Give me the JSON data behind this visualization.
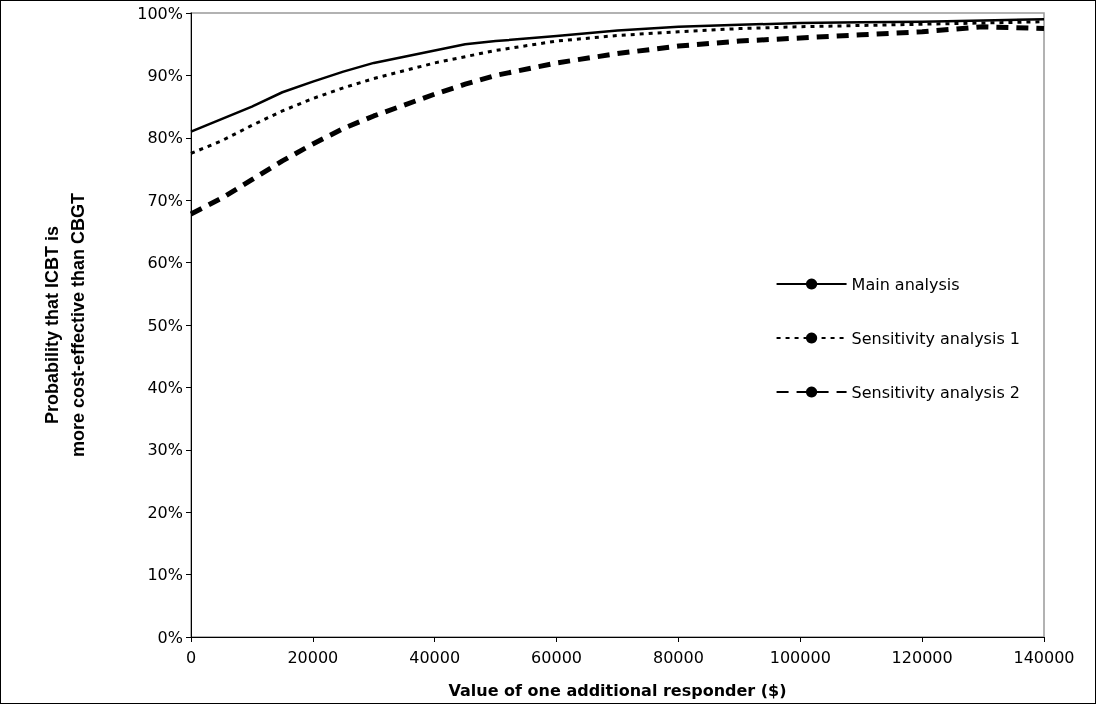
{
  "chart_data": {
    "type": "line",
    "xlabel": "Value of one additional responder ($)",
    "ylabel": "Probability that ICBT is\nmore cost-effective than CBGT",
    "x": [
      0,
      5000,
      10000,
      15000,
      20000,
      25000,
      30000,
      40000,
      45000,
      50000,
      60000,
      70000,
      80000,
      90000,
      100000,
      110000,
      120000,
      130000,
      140000
    ],
    "series": [
      {
        "name": "Main analysis",
        "color": "#000000",
        "line_style": "solid",
        "values": [
          81,
          83,
          85,
          87.3,
          89,
          90.6,
          92,
          94,
          95,
          95.5,
          96.3,
          97.2,
          97.8,
          98.1,
          98.4,
          98.5,
          98.6,
          98.8,
          99
        ]
      },
      {
        "name": "Sensitivity analysis 1",
        "color": "#000000",
        "line_style": "dotted",
        "values": [
          77.5,
          79.5,
          82,
          84.3,
          86.3,
          88,
          89.5,
          92,
          93,
          94,
          95.5,
          96.4,
          97,
          97.5,
          97.8,
          98,
          98.2,
          98.4,
          98.6
        ]
      },
      {
        "name": "Sensitivity analysis 2",
        "color": "#000000",
        "line_style": "dashed",
        "values": [
          67.8,
          70.3,
          73.3,
          76.3,
          79,
          81.5,
          83.5,
          87,
          88.6,
          90,
          92,
          93.5,
          94.7,
          95.5,
          96,
          96.5,
          97,
          97.8,
          97.5
        ]
      }
    ],
    "xlim": [
      0,
      140000
    ],
    "xticks": [
      0,
      20000,
      40000,
      60000,
      80000,
      100000,
      120000,
      140000
    ],
    "ylim": [
      0,
      100
    ],
    "yticks": [
      {
        "value": 0,
        "label": "0%"
      },
      {
        "value": 10,
        "label": "10%"
      },
      {
        "value": 20,
        "label": "20%"
      },
      {
        "value": 30,
        "label": "30%"
      },
      {
        "value": 40,
        "label": "40%"
      },
      {
        "value": 50,
        "label": "50%"
      },
      {
        "value": 60,
        "label": "60%"
      },
      {
        "value": 70,
        "label": "70%"
      },
      {
        "value": 80,
        "label": "80%"
      },
      {
        "value": 90,
        "label": "90%"
      },
      {
        "value": 100,
        "label": "100%"
      }
    ],
    "grid": false,
    "legend": "right",
    "marker": "none"
  }
}
